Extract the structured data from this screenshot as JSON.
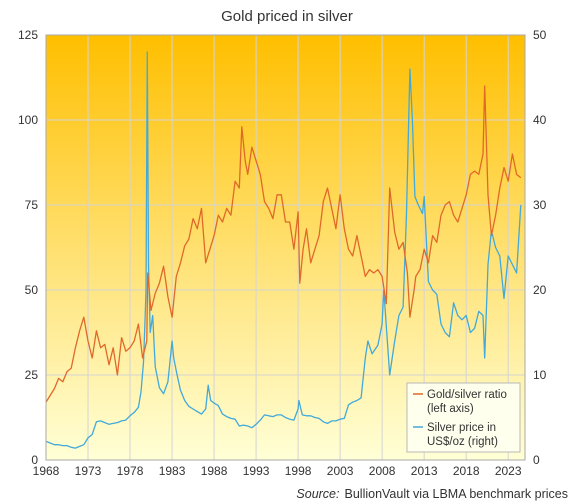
{
  "chart_data": {
    "type": "line",
    "title": "Gold priced in silver",
    "grid": true,
    "legend_position": "bottom-right",
    "x_range": [
      1968,
      2025
    ],
    "x_ticks": [
      "1968",
      "1973",
      "1978",
      "1983",
      "1988",
      "1993",
      "1998",
      "2003",
      "2008",
      "2013",
      "2018",
      "2023"
    ],
    "y_left": {
      "range": [
        0,
        125
      ],
      "ticks": [
        "0",
        "25",
        "50",
        "75",
        "100",
        "125"
      ]
    },
    "y_right": {
      "range": [
        0,
        50
      ],
      "ticks": [
        "0",
        "10",
        "20",
        "30",
        "40",
        "50"
      ]
    },
    "series": [
      {
        "name": "Gold/silver ratio (left axis)",
        "name_lines": [
          "Gold/silver ratio",
          "(left axis)"
        ],
        "axis": "left",
        "color": "#E0692A",
        "x": [
          1968.0,
          1968.5,
          1969.0,
          1969.5,
          1970.0,
          1970.5,
          1971.0,
          1971.5,
          1972.0,
          1972.5,
          1973.0,
          1973.5,
          1974.0,
          1974.5,
          1975.0,
          1975.5,
          1976.0,
          1976.5,
          1977.0,
          1977.5,
          1978.0,
          1978.5,
          1979.0,
          1979.5,
          1980.0,
          1980.1,
          1980.5,
          1981.0,
          1981.5,
          1982.0,
          1982.5,
          1983.0,
          1983.5,
          1984.0,
          1984.5,
          1985.0,
          1985.5,
          1986.0,
          1986.5,
          1987.0,
          1987.5,
          1988.0,
          1988.5,
          1989.0,
          1989.5,
          1990.0,
          1990.5,
          1991.0,
          1991.3,
          1991.7,
          1992.0,
          1992.5,
          1993.0,
          1993.5,
          1994.0,
          1994.5,
          1995.0,
          1995.5,
          1996.0,
          1996.5,
          1997.0,
          1997.5,
          1998.0,
          1998.2,
          1998.6,
          1999.0,
          1999.5,
          2000.0,
          2000.5,
          2001.0,
          2001.5,
          2002.0,
          2002.5,
          2003.0,
          2003.5,
          2004.0,
          2004.5,
          2005.0,
          2005.5,
          2006.0,
          2006.5,
          2007.0,
          2007.5,
          2008.0,
          2008.5,
          2008.9,
          2009.5,
          2010.0,
          2010.5,
          2011.0,
          2011.3,
          2011.8,
          2012.0,
          2012.5,
          2013.0,
          2013.5,
          2014.0,
          2014.5,
          2015.0,
          2015.5,
          2016.0,
          2016.5,
          2017.0,
          2017.5,
          2018.0,
          2018.5,
          2019.0,
          2019.5,
          2020.0,
          2020.2,
          2020.6,
          2021.0,
          2021.5,
          2022.0,
          2022.5,
          2023.0,
          2023.5,
          2024.0,
          2024.5
        ],
        "values": [
          17,
          19,
          21,
          24,
          23,
          26,
          27,
          33,
          38,
          42,
          35,
          30,
          38,
          33,
          34,
          28,
          33,
          25,
          36,
          32,
          33,
          35,
          40,
          30,
          35,
          55,
          44,
          49,
          52,
          57,
          48,
          42,
          54,
          58,
          63,
          65,
          71,
          68,
          74,
          58,
          62,
          66,
          72,
          70,
          74,
          72,
          82,
          80,
          98,
          88,
          84,
          92,
          88,
          84,
          76,
          74,
          71,
          78,
          78,
          70,
          70,
          62,
          73,
          52,
          62,
          68,
          58,
          62,
          66,
          76,
          80,
          74,
          68,
          78,
          68,
          62,
          60,
          66,
          60,
          54,
          56,
          55,
          56,
          54,
          46,
          80,
          67,
          62,
          64,
          55,
          42,
          50,
          54,
          56,
          62,
          58,
          66,
          64,
          72,
          75,
          76,
          72,
          70,
          74,
          78,
          84,
          85,
          84,
          90,
          110,
          78,
          66,
          72,
          80,
          86,
          82,
          90,
          84,
          83
        ]
      },
      {
        "name": "Silver price in US$/oz (right)",
        "name_lines": [
          "Silver price in",
          "US$/oz (right)"
        ],
        "axis": "right",
        "color": "#42A9DA",
        "x": [
          1968.0,
          1968.5,
          1969.0,
          1969.5,
          1970.0,
          1970.5,
          1971.0,
          1971.5,
          1972.0,
          1972.5,
          1973.0,
          1973.5,
          1974.0,
          1974.5,
          1975.0,
          1975.5,
          1976.0,
          1976.5,
          1977.0,
          1977.5,
          1978.0,
          1978.5,
          1979.0,
          1979.3,
          1979.6,
          1979.8,
          1979.9,
          1980.05,
          1980.2,
          1980.4,
          1980.7,
          1981.0,
          1981.5,
          1982.0,
          1982.5,
          1983.0,
          1983.2,
          1983.6,
          1984.0,
          1984.5,
          1985.0,
          1985.5,
          1986.0,
          1986.5,
          1987.0,
          1987.3,
          1987.6,
          1988.0,
          1988.5,
          1989.0,
          1989.5,
          1990.0,
          1990.5,
          1991.0,
          1991.5,
          1992.0,
          1992.5,
          1993.0,
          1993.5,
          1994.0,
          1994.5,
          1995.0,
          1995.5,
          1996.0,
          1996.5,
          1997.0,
          1997.5,
          1998.0,
          1998.1,
          1998.5,
          1999.0,
          1999.5,
          2000.0,
          2000.5,
          2001.0,
          2001.5,
          2002.0,
          2002.5,
          2003.0,
          2003.5,
          2004.0,
          2004.5,
          2005.0,
          2005.5,
          2006.0,
          2006.3,
          2006.8,
          2007.5,
          2008.0,
          2008.2,
          2008.9,
          2009.5,
          2010.0,
          2010.5,
          2010.9,
          2011.3,
          2011.6,
          2011.9,
          2012.3,
          2012.8,
          2013.0,
          2013.5,
          2014.0,
          2014.5,
          2015.0,
          2015.5,
          2016.0,
          2016.5,
          2017.0,
          2017.5,
          2018.0,
          2018.5,
          2019.0,
          2019.5,
          2020.0,
          2020.2,
          2020.6,
          2021.0,
          2021.5,
          2022.0,
          2022.5,
          2023.0,
          2023.5,
          2024.0,
          2024.5
        ],
        "values": [
          2.2,
          2.0,
          1.8,
          1.8,
          1.7,
          1.7,
          1.5,
          1.4,
          1.6,
          1.8,
          2.6,
          3.0,
          4.5,
          4.6,
          4.4,
          4.2,
          4.3,
          4.4,
          4.6,
          4.7,
          5.2,
          5.6,
          6.2,
          8.0,
          11.5,
          17.0,
          20.0,
          48.0,
          23.0,
          15.0,
          17.0,
          11.0,
          8.5,
          7.8,
          9.2,
          14.0,
          12.0,
          10.0,
          8.2,
          7.0,
          6.3,
          6.0,
          5.7,
          5.4,
          6.0,
          8.8,
          7.0,
          6.7,
          6.4,
          5.4,
          5.1,
          4.9,
          4.8,
          4.0,
          4.1,
          4.0,
          3.8,
          4.2,
          4.7,
          5.3,
          5.2,
          5.1,
          5.3,
          5.3,
          5.0,
          4.8,
          4.7,
          6.0,
          7.0,
          5.3,
          5.2,
          5.2,
          5.0,
          4.9,
          4.5,
          4.3,
          4.6,
          4.6,
          4.8,
          4.9,
          6.5,
          6.8,
          7.0,
          7.3,
          12.0,
          14.0,
          12.5,
          13.5,
          16.0,
          20.0,
          10.0,
          14.0,
          17.0,
          18.0,
          29.0,
          46.0,
          40.0,
          31.0,
          30.0,
          29.0,
          31.0,
          21.0,
          20.0,
          19.5,
          16.0,
          15.0,
          14.5,
          18.5,
          17.0,
          16.5,
          17.0,
          15.0,
          15.5,
          17.5,
          17.0,
          12.0,
          23.0,
          27.0,
          25.0,
          24.0,
          19.0,
          24.0,
          23.0,
          22.0,
          30.0
        ]
      }
    ]
  },
  "source": {
    "prefix": "Source:",
    "text": "BullionVault via LBMA benchmark prices"
  }
}
